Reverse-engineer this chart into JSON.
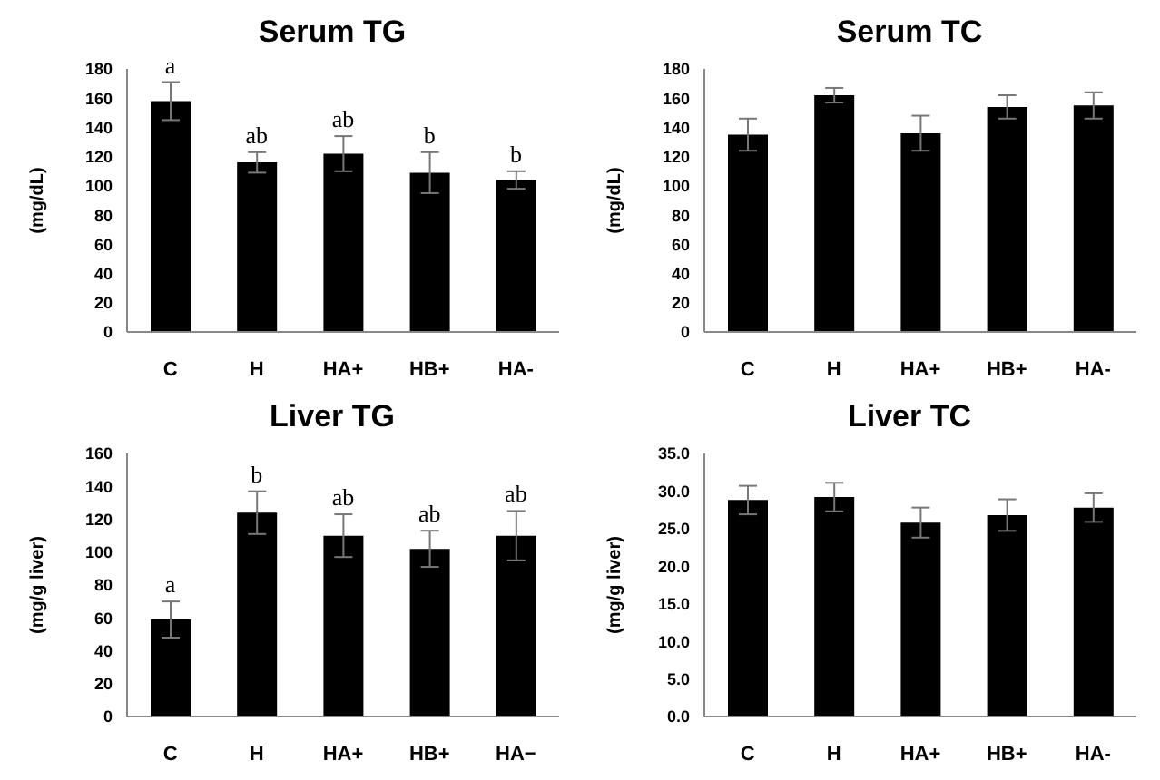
{
  "chart_data": [
    {
      "type": "bar",
      "title": "Serum TG",
      "ylabel": "(mg/dL)",
      "categories": [
        "C",
        "H",
        "HA+",
        "HB+",
        "HA-"
      ],
      "values": [
        158,
        116,
        122,
        109,
        104
      ],
      "errors": [
        13,
        7,
        12,
        14,
        6
      ],
      "color": "#000000",
      "ylim": [
        0,
        180
      ],
      "yticks": [
        0,
        20,
        40,
        60,
        80,
        100,
        120,
        140,
        160,
        180
      ],
      "grid": false,
      "legend": false,
      "annotations": [
        {
          "text": "a",
          "x": "C",
          "y": 171
        },
        {
          "text": "ab",
          "x": "H",
          "y": 123
        },
        {
          "text": "ab",
          "x": "HA+",
          "y": 134
        },
        {
          "text": "b",
          "x": "HB+",
          "y": 123
        },
        {
          "text": "b",
          "x": "HA-",
          "y": 110
        }
      ]
    },
    {
      "type": "bar",
      "title": "Serum TC",
      "ylabel": "(mg/dL)",
      "categories": [
        "C",
        "H",
        "HA+",
        "HB+",
        "HA-"
      ],
      "values": [
        135,
        162,
        136,
        154,
        155
      ],
      "errors": [
        11,
        5,
        12,
        8,
        9
      ],
      "color": "#000000",
      "ylim": [
        0,
        180
      ],
      "yticks": [
        0,
        20,
        40,
        60,
        80,
        100,
        120,
        140,
        160,
        180
      ],
      "grid": false,
      "legend": false
    },
    {
      "type": "bar",
      "title": "Liver TG",
      "ylabel": "(mg/g liver)",
      "categories": [
        "C",
        "H",
        "HA+",
        "HB+",
        "HA−"
      ],
      "values": [
        59,
        124,
        110,
        102,
        110
      ],
      "errors": [
        11,
        13,
        13,
        11,
        15
      ],
      "color": "#000000",
      "ylim": [
        0,
        160
      ],
      "yticks": [
        0,
        20,
        40,
        60,
        80,
        100,
        120,
        140,
        160
      ],
      "grid": false,
      "legend": false,
      "annotations": [
        {
          "text": "a",
          "x": "C",
          "y": 70
        },
        {
          "text": "b",
          "x": "H",
          "y": 137
        },
        {
          "text": "ab",
          "x": "HA+",
          "y": 123
        },
        {
          "text": "ab",
          "x": "HB+",
          "y": 113
        },
        {
          "text": "ab",
          "x": "HA−",
          "y": 125
        }
      ]
    },
    {
      "type": "bar",
      "title": "Liver TC",
      "ylabel": "(mg/g liver)",
      "categories": [
        "C",
        "H",
        "HA+",
        "HB+",
        "HA-"
      ],
      "values": [
        28.8,
        29.2,
        25.8,
        26.8,
        27.8
      ],
      "errors": [
        1.9,
        1.9,
        2.0,
        2.1,
        1.9
      ],
      "color": "#000000",
      "ylim": [
        0,
        35
      ],
      "yticks": [
        {
          "value": 0,
          "label": "0.0"
        },
        {
          "value": 5,
          "label": "5.0"
        },
        {
          "value": 10,
          "label": "10.0"
        },
        {
          "value": 15,
          "label": "15.0"
        },
        {
          "value": 20,
          "label": "20.0"
        },
        {
          "value": 25,
          "label": "25.0"
        },
        {
          "value": 30,
          "label": "30.0"
        },
        {
          "value": 35,
          "label": "35.0"
        }
      ],
      "grid": false,
      "legend": false
    }
  ]
}
